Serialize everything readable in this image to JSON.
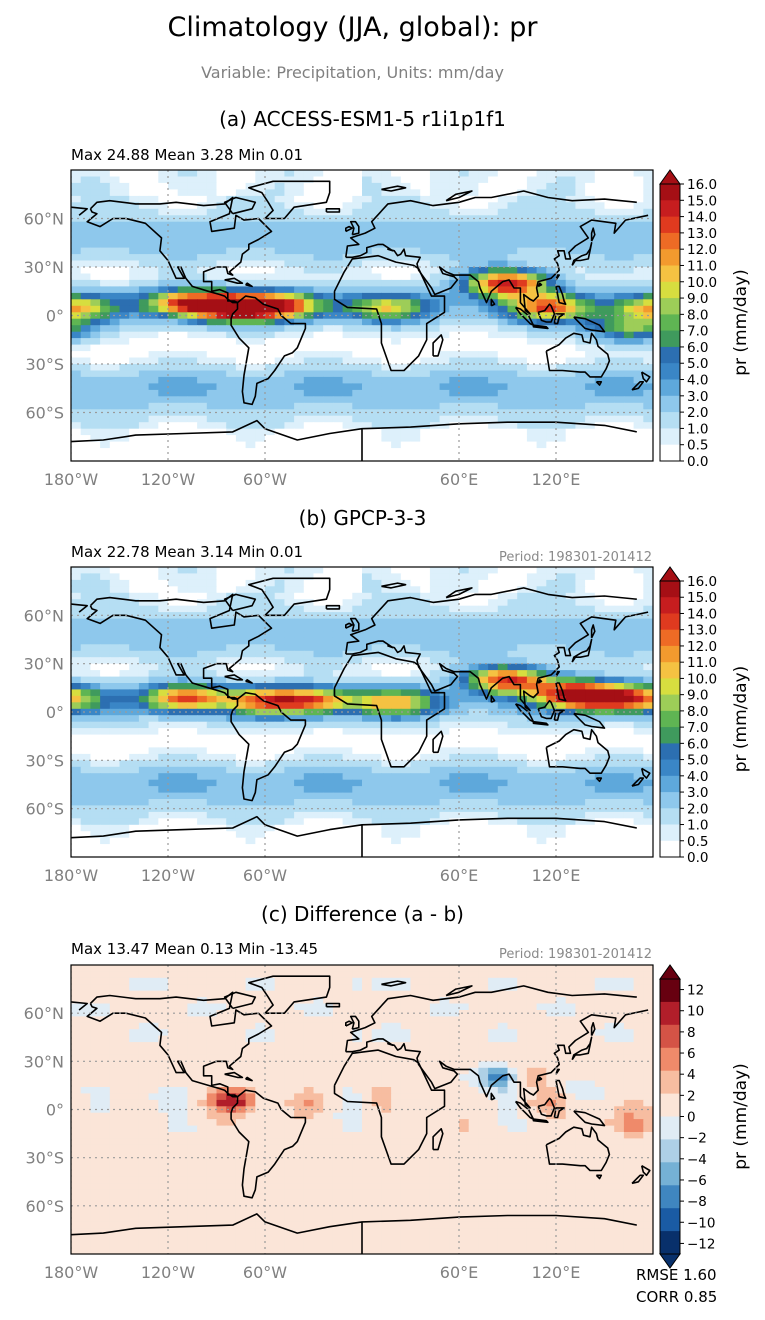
{
  "figure": {
    "title": "Climatology (JJA, global): pr",
    "subtitle": "Variable: Precipitation, Units: mm/day"
  },
  "colors": {
    "abs_levels": [
      "#ffffff",
      "#ddf0fb",
      "#b5def3",
      "#8ec8ec",
      "#5ea8db",
      "#3a86c6",
      "#2c6fb1",
      "#3f9a5d",
      "#5fb553",
      "#9dcd58",
      "#d7de3f",
      "#f5c242",
      "#f39a2e",
      "#ee6b25",
      "#df3a1f",
      "#c61d1f",
      "#a50f15"
    ],
    "diff_neg": [
      "#08306b",
      "#1a5ba4",
      "#3f86c0",
      "#75b1d5",
      "#aed0e6",
      "#e0ecf5"
    ],
    "diff_pos": [
      "#fbe5d8",
      "#f7bda1",
      "#ef8a6a",
      "#d45346",
      "#b11e2a",
      "#670010"
    ],
    "land_outline": "#000000",
    "grid": "#9a9a9a"
  },
  "axes": {
    "y_ticks": [
      "60°N",
      "30°N",
      "0°",
      "30°S",
      "60°S"
    ],
    "x_ticks": [
      "60°E",
      "120°E",
      "180°W",
      "120°W",
      "60°W"
    ]
  },
  "panels": [
    {
      "title": "(a) ACCESS-ESM1-5 r1i1p1f1",
      "stats": "Max 24.88 Mean 3.28 Min 0.01",
      "period": "",
      "colorbar_ticks": [
        "16.0",
        "15.0",
        "14.0",
        "13.0",
        "12.0",
        "11.0",
        "10.0",
        "9.0",
        "8.0",
        "7.0",
        "6.0",
        "5.0",
        "4.0",
        "3.0",
        "2.0",
        "1.0",
        "0.5",
        "0.0"
      ],
      "colorbar_label": "pr (mm/day)"
    },
    {
      "title": "(b) GPCP-3-3",
      "stats": "Max 22.78 Mean 3.14 Min 0.01",
      "period": "Period: 198301-201412",
      "colorbar_ticks": [
        "16.0",
        "15.0",
        "14.0",
        "13.0",
        "12.0",
        "11.0",
        "10.0",
        "9.0",
        "8.0",
        "7.0",
        "6.0",
        "5.0",
        "4.0",
        "3.0",
        "2.0",
        "1.0",
        "0.5",
        "0.0"
      ],
      "colorbar_label": "pr (mm/day)"
    },
    {
      "title": "(c) Difference (a - b)",
      "stats": "Max 13.47 Mean 0.13 Min -13.45",
      "period": "Period: 198301-201412",
      "colorbar_ticks": [
        "12",
        "10",
        "8",
        "6",
        "4",
        "2",
        "0",
        "−2",
        "−4",
        "−6",
        "−8",
        "−10",
        "−12"
      ],
      "colorbar_label": "pr (mm/day)"
    }
  ],
  "metrics": {
    "rmse": "RMSE 1.60",
    "corr": "CORR 0.85"
  },
  "chart_data": [
    {
      "type": "heatmap",
      "title": "(a) ACCESS-ESM1-5 r1i1p1f1",
      "projection": "PlateCarree, central longitude 180",
      "lon_ticks": [
        "60°E",
        "120°E",
        "180°W",
        "120°W",
        "60°W"
      ],
      "lat_ticks": [
        "60°N",
        "30°N",
        "0°",
        "30°S",
        "60°S"
      ],
      "levels": [
        0.0,
        0.5,
        1.0,
        2.0,
        3.0,
        4.0,
        5.0,
        6.0,
        7.0,
        8.0,
        9.0,
        10.0,
        11.0,
        12.0,
        13.0,
        14.0,
        15.0,
        16.0
      ],
      "extend": "max",
      "units": "mm/day",
      "stats": {
        "max": 24.88,
        "mean": 3.28,
        "min": 0.01
      },
      "features": [
        {
          "lon": 310,
          "lat": 6,
          "peak": 11
        },
        {
          "lon": 250,
          "lat": 8,
          "peak": 10
        },
        {
          "lon": 180,
          "lat": 5,
          "peak": 8
        },
        {
          "lon": 90,
          "lat": 20,
          "peak": 14
        },
        {
          "lon": 115,
          "lat": 5,
          "peak": 10
        },
        {
          "lon": 165,
          "lat": -8,
          "peak": 7
        },
        {
          "lon": 280,
          "lat": 5,
          "peak": 14
        },
        {
          "lon": 15,
          "lat": 5,
          "peak": 7
        }
      ]
    },
    {
      "type": "heatmap",
      "title": "(b) GPCP-3-3",
      "projection": "PlateCarree, central longitude 180",
      "lon_ticks": [
        "60°E",
        "120°E",
        "180°W",
        "120°W",
        "60°W"
      ],
      "lat_ticks": [
        "60°N",
        "30°N",
        "0°",
        "30°S",
        "60°S"
      ],
      "levels": [
        0.0,
        0.5,
        1.0,
        2.0,
        3.0,
        4.0,
        5.0,
        6.0,
        7.0,
        8.0,
        9.0,
        10.0,
        11.0,
        12.0,
        13.0,
        14.0,
        15.0,
        16.0
      ],
      "extend": "max",
      "units": "mm/day",
      "stats": {
        "max": 22.78,
        "mean": 3.14,
        "min": 0.01
      },
      "features": [
        {
          "lon": 250,
          "lat": 9,
          "peak": 11
        },
        {
          "lon": 300,
          "lat": 7,
          "peak": 9
        },
        {
          "lon": 330,
          "lat": 7,
          "peak": 9
        },
        {
          "lon": 90,
          "lat": 20,
          "peak": 13
        },
        {
          "lon": 130,
          "lat": 12,
          "peak": 11
        },
        {
          "lon": 150,
          "lat": 8,
          "peak": 9
        },
        {
          "lon": 175,
          "lat": 9,
          "peak": 7
        },
        {
          "lon": 20,
          "lat": 6,
          "peak": 8
        }
      ]
    },
    {
      "type": "heatmap",
      "title": "(c) Difference (a - b)",
      "projection": "PlateCarree, central longitude 180",
      "lon_ticks": [
        "60°E",
        "120°E",
        "180°W",
        "120°W",
        "60°W"
      ],
      "lat_ticks": [
        "60°N",
        "30°N",
        "0°",
        "30°S",
        "60°S"
      ],
      "levels": [
        -12,
        -10,
        -8,
        -6,
        -4,
        -2,
        0,
        2,
        4,
        6,
        8,
        10,
        12
      ],
      "extend": "both",
      "units": "mm/day",
      "stats": {
        "max": 13.47,
        "mean": 0.13,
        "min": -13.45
      },
      "metrics": {
        "rmse": 1.6,
        "corr": 0.85
      },
      "features": [
        {
          "lon": 85,
          "lat": 20,
          "peak": -8
        },
        {
          "lon": 100,
          "lat": 20,
          "peak": 3
        },
        {
          "lon": 115,
          "lat": 3,
          "peak": 3
        },
        {
          "lon": 135,
          "lat": 12,
          "peak": -3
        },
        {
          "lon": 280,
          "lat": 5,
          "peak": 8
        },
        {
          "lon": 325,
          "lat": 5,
          "peak": 3
        },
        {
          "lon": 165,
          "lat": -8,
          "peak": 3
        },
        {
          "lon": 240,
          "lat": 8,
          "peak": -2
        }
      ]
    }
  ]
}
